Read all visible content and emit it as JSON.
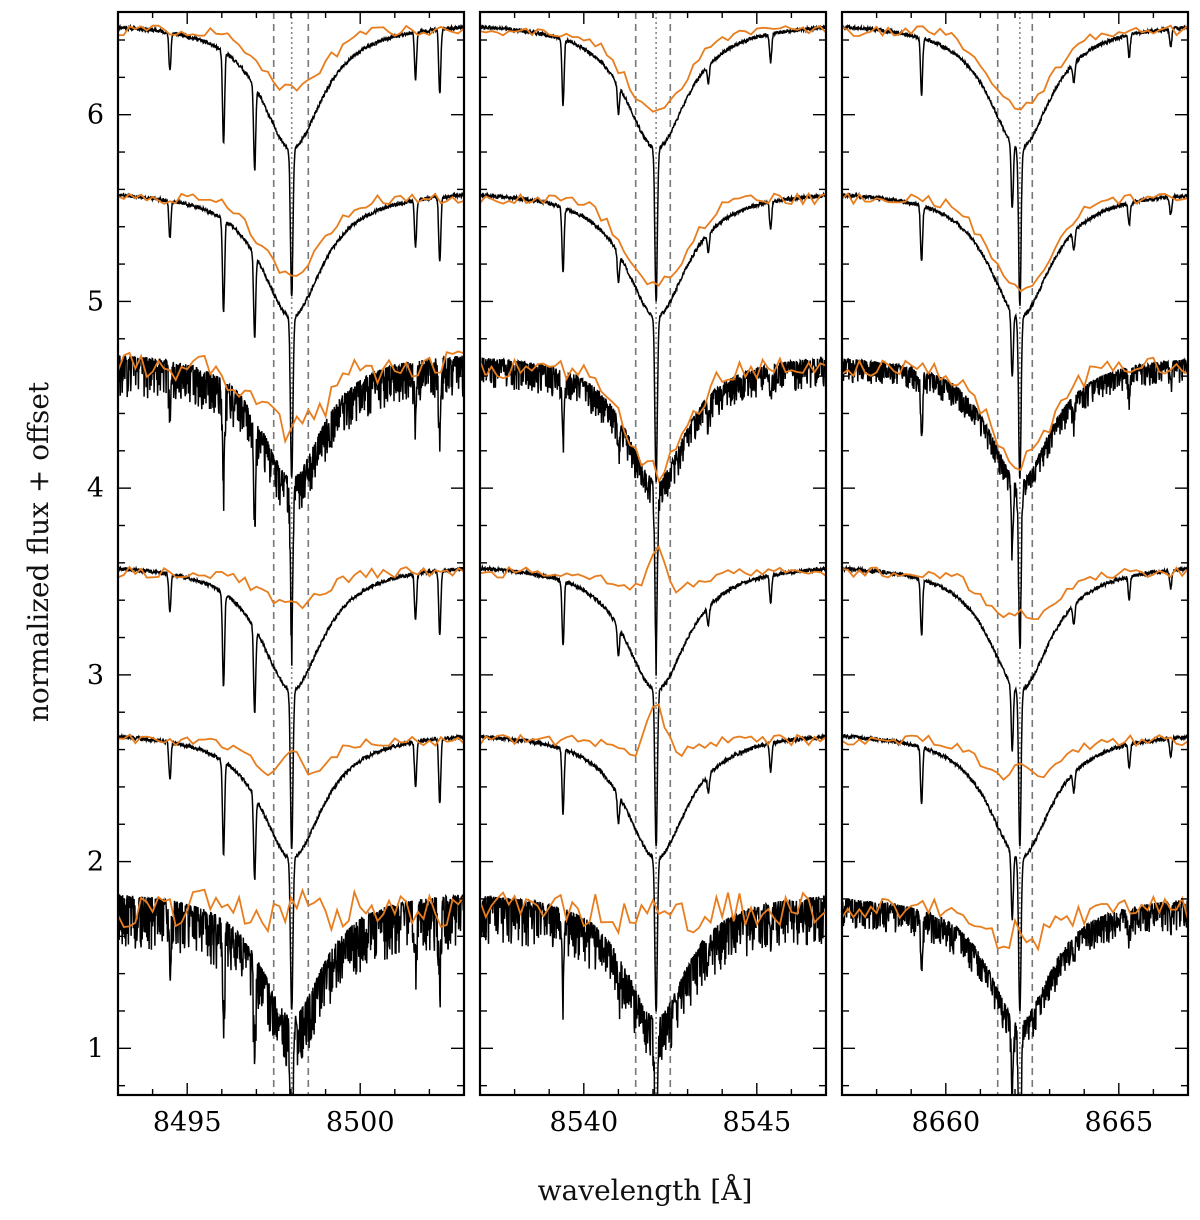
{
  "chart_data": {
    "type": "line",
    "ylabel": "normalized flux + offset",
    "xlabel": "wavelength [Å]",
    "ylim": [
      0.75,
      6.55
    ],
    "yticks": [
      1,
      2,
      3,
      4,
      5,
      6
    ],
    "colors": {
      "model": "#000000",
      "observed": "#e87d1e",
      "guide_dashed": "#777777",
      "guide_dotted": "#888888"
    },
    "offsets": [
      6.5,
      5.6,
      4.7,
      3.6,
      2.7,
      1.8
    ],
    "panels": [
      {
        "xlim": [
          8493,
          8503
        ],
        "xticks": [
          8495,
          8500
        ],
        "xtick_labels": [
          "8495",
          "8500"
        ],
        "line_center": 8498.02,
        "window": [
          8497.5,
          8498.5
        ],
        "core_depths": [
          0.8,
          0.87,
          0.82,
          0.86,
          0.82,
          0.8
        ],
        "obs_depths": [
          0.32,
          0.4,
          0.35,
          0.18,
          0.22,
          0.05
        ],
        "noise": [
          0.02,
          0.02,
          0.14,
          0.02,
          0.02,
          0.18
        ],
        "emission": [
          0,
          0,
          0,
          0,
          0.18,
          0.1
        ],
        "blends": [
          [
            8496.95,
            0.45
          ],
          [
            8501.6,
            0.25
          ],
          [
            8502.3,
            0.35
          ],
          [
            8494.5,
            0.2
          ],
          [
            8496.05,
            0.5
          ]
        ]
      },
      {
        "xlim": [
          8537,
          8547
        ],
        "xticks": [
          8540,
          8545
        ],
        "xtick_labels": [
          "8540",
          "8545"
        ],
        "line_center": 8542.09,
        "window": [
          8541.5,
          8542.5
        ],
        "core_depths": [
          0.82,
          0.88,
          0.9,
          0.84,
          0.82,
          0.86
        ],
        "obs_depths": [
          0.42,
          0.45,
          0.55,
          0.12,
          0.1,
          0.08
        ],
        "noise": [
          0.02,
          0.02,
          0.1,
          0.02,
          0.02,
          0.16
        ],
        "emission": [
          0,
          0,
          0,
          0.25,
          0.3,
          0.08
        ],
        "blends": [
          [
            8539.4,
            0.35
          ],
          [
            8545.4,
            0.15
          ],
          [
            8543.6,
            0.1
          ],
          [
            8541.0,
            0.15
          ]
        ]
      },
      {
        "xlim": [
          8657,
          8667
        ],
        "xticks": [
          8660,
          8665
        ],
        "xtick_labels": [
          "8660",
          "8665"
        ],
        "line_center": 8662.14,
        "window": [
          8661.5,
          8662.5
        ],
        "core_depths": [
          0.84,
          0.88,
          0.86,
          0.84,
          0.82,
          0.86
        ],
        "obs_depths": [
          0.42,
          0.48,
          0.5,
          0.28,
          0.25,
          0.2
        ],
        "noise": [
          0.02,
          0.02,
          0.08,
          0.02,
          0.02,
          0.1
        ],
        "emission": [
          0,
          0,
          0,
          0.06,
          0.12,
          0.08
        ],
        "blends": [
          [
            8659.3,
            0.3
          ],
          [
            8663.7,
            0.1
          ],
          [
            8665.3,
            0.12
          ],
          [
            8666.5,
            0.1
          ]
        ]
      }
    ]
  }
}
